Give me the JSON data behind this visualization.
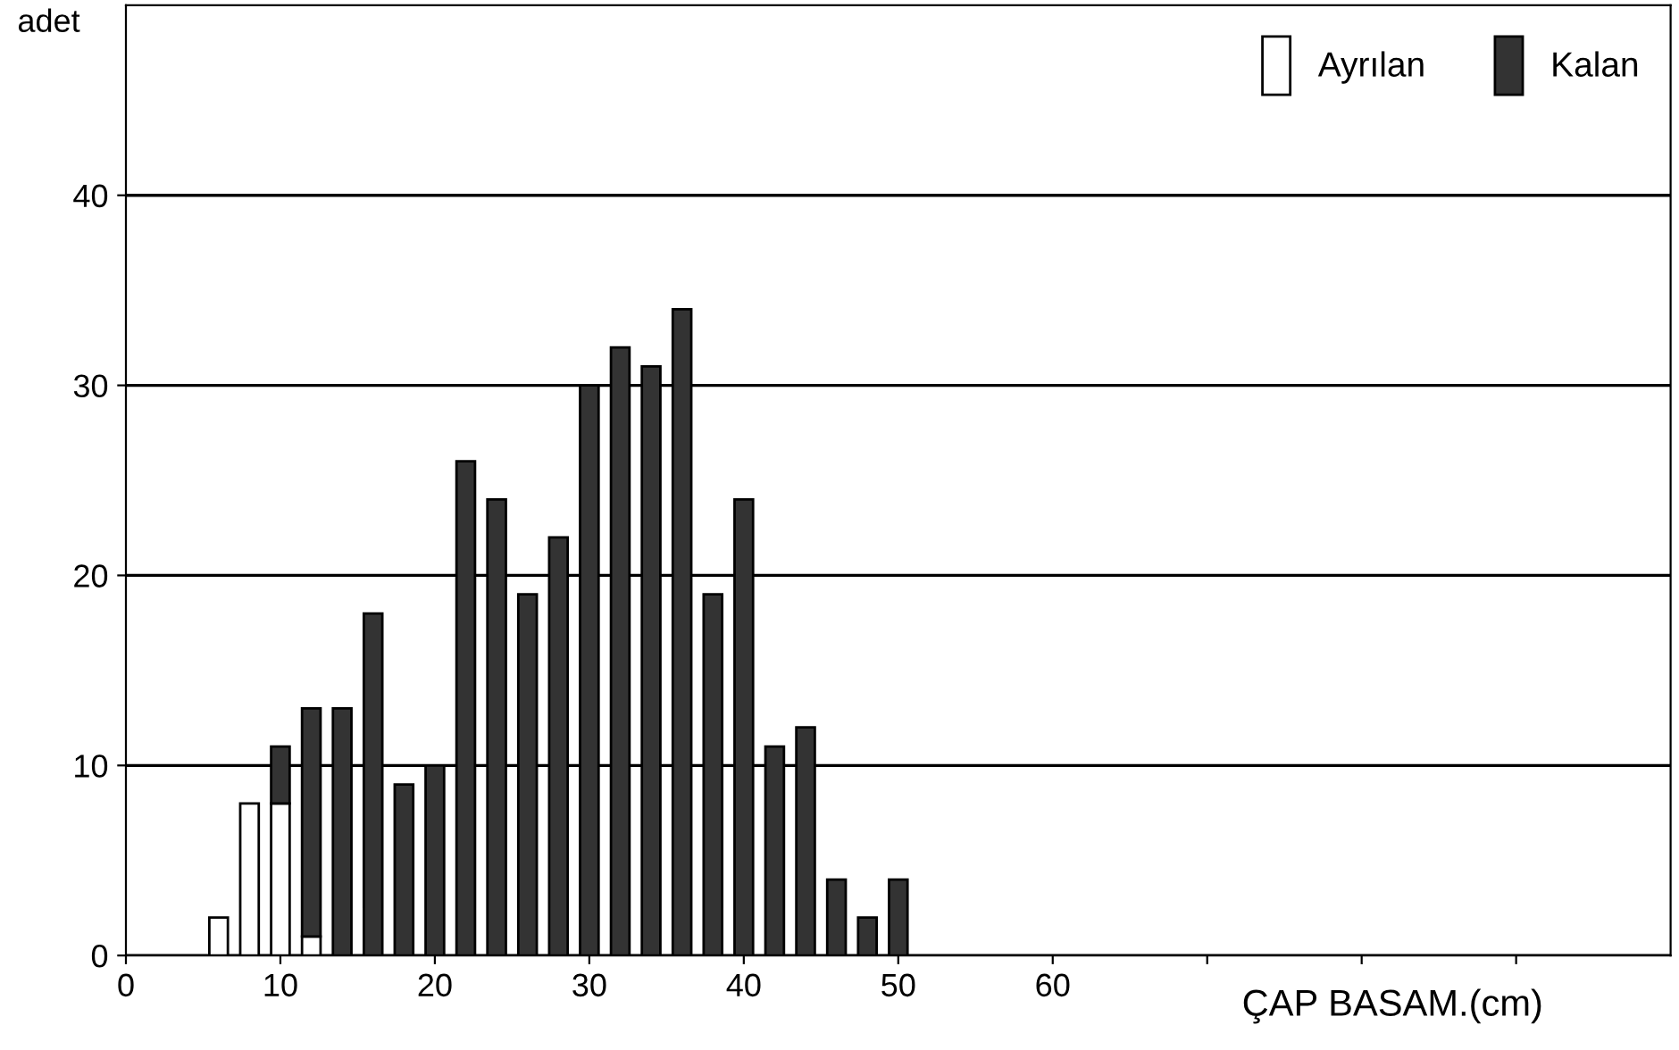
{
  "chart_data": {
    "type": "bar",
    "stacked": true,
    "xlabel": "ÇAP BASAM.(cm)",
    "ylabel": "adet",
    "x": [
      6,
      8,
      10,
      12,
      14,
      16,
      18,
      20,
      22,
      24,
      26,
      28,
      30,
      32,
      34,
      36,
      38,
      40,
      42,
      44,
      46,
      48,
      50
    ],
    "series": [
      {
        "name": "Ayrılan",
        "color": "#ffffff",
        "values": [
          2,
          8,
          8,
          1,
          null,
          null,
          null,
          null,
          null,
          null,
          null,
          null,
          null,
          null,
          null,
          null,
          null,
          null,
          null,
          null,
          null,
          null,
          null
        ]
      },
      {
        "name": "Kalan",
        "color": "#333333",
        "values": [
          null,
          null,
          3,
          12,
          13,
          18,
          9,
          10,
          26,
          24,
          19,
          22,
          30,
          32,
          31,
          34,
          19,
          24,
          11,
          12,
          4,
          2,
          4
        ]
      }
    ],
    "xlim": [
      0,
      100
    ],
    "xticks": [
      0,
      10,
      20,
      30,
      40,
      50,
      60,
      {
        "value": 70,
        "label": null
      },
      {
        "value": 80,
        "label": null
      },
      {
        "value": 90,
        "label": null
      }
    ],
    "ylim": [
      0,
      50
    ],
    "yticks": [
      0,
      10,
      20,
      30,
      40
    ],
    "grid": "y",
    "legend": "top right"
  }
}
